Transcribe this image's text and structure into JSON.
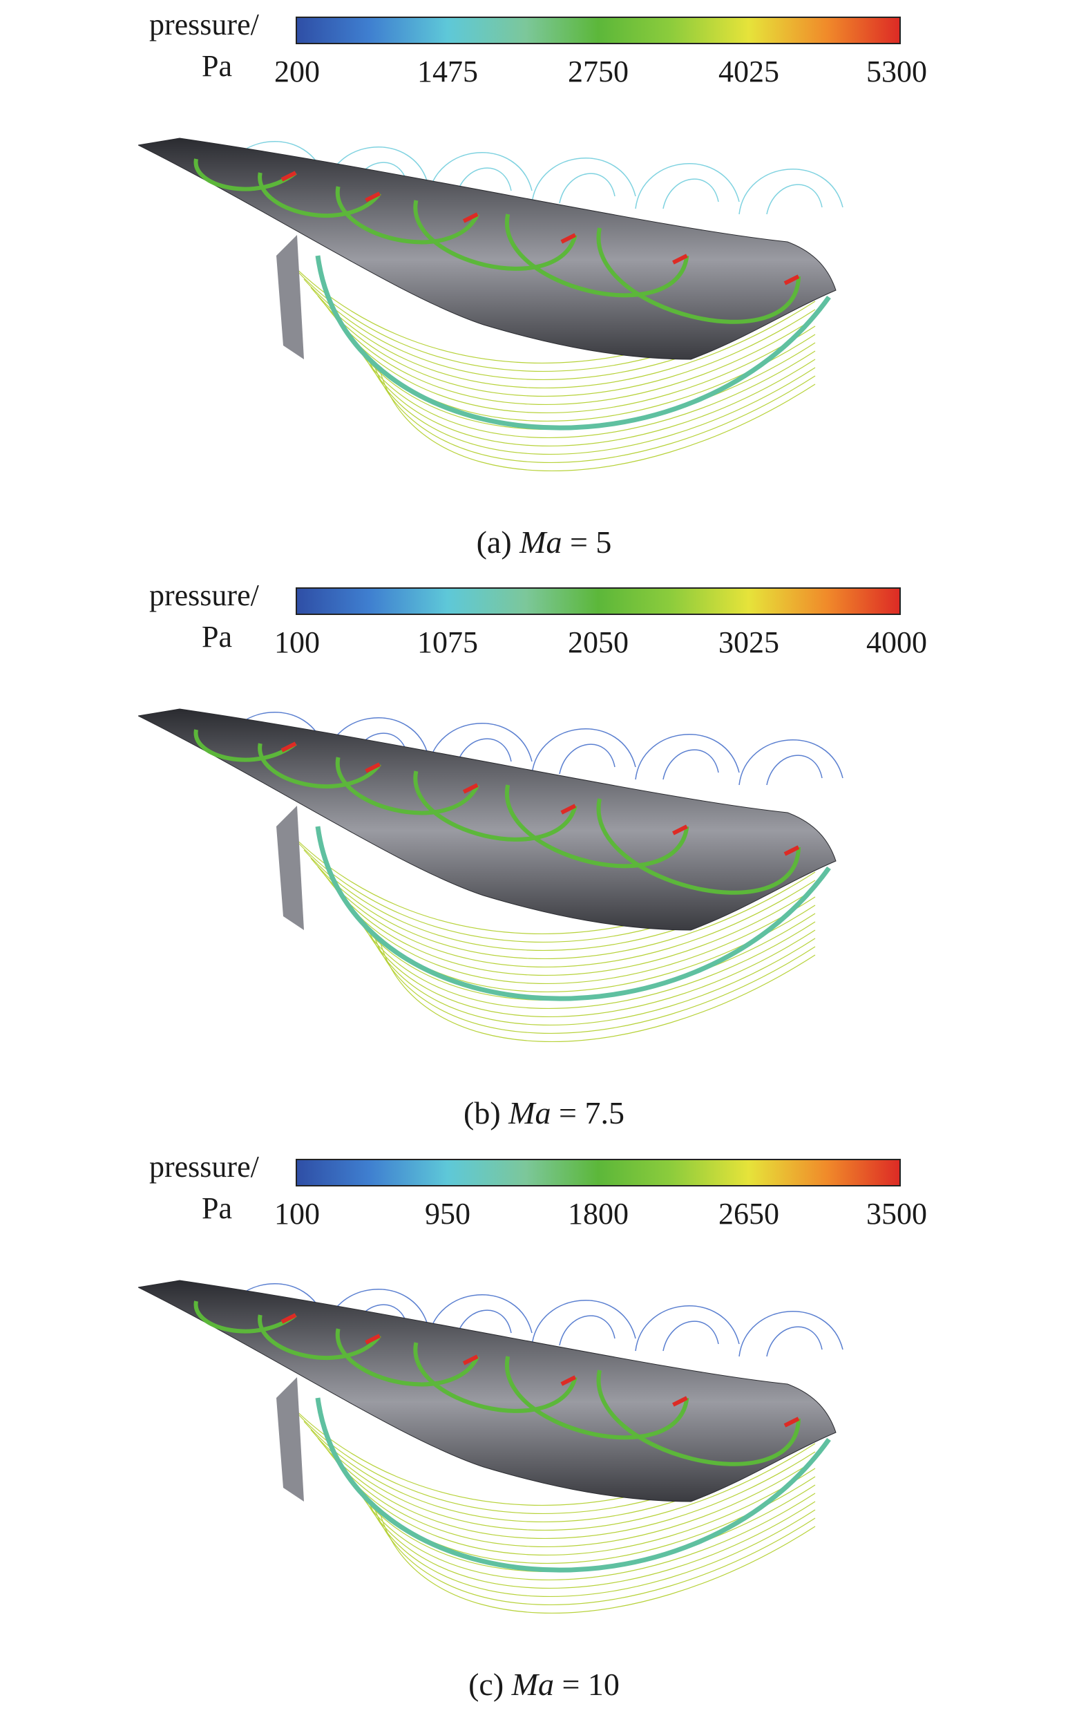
{
  "panels": [
    {
      "colorbar": {
        "label_line1": "pressure/",
        "label_line2": "Pa",
        "ticks": [
          "200",
          "1475",
          "2750",
          "4025",
          "5300"
        ]
      },
      "caption": {
        "prefix": "(a)",
        "variable": "Ma",
        "value": "= 5"
      }
    },
    {
      "colorbar": {
        "label_line1": "pressure/",
        "label_line2": "Pa",
        "ticks": [
          "100",
          "1075",
          "2050",
          "3025",
          "4000"
        ]
      },
      "caption": {
        "prefix": "(b)",
        "variable": "Ma",
        "value": "= 7.5"
      }
    },
    {
      "colorbar": {
        "label_line1": "pressure/",
        "label_line2": "Pa",
        "ticks": [
          "100",
          "950",
          "1800",
          "2650",
          "3500"
        ]
      },
      "caption": {
        "prefix": "(c)",
        "variable": "Ma",
        "value": "= 10"
      }
    }
  ],
  "colors": {
    "low": "#2f4fa6",
    "mid_low": "#5ec8d8",
    "mid": "#5cb73a",
    "mid_high": "#e6e33a",
    "high": "#dd2b25",
    "body": "#4a4b52"
  }
}
